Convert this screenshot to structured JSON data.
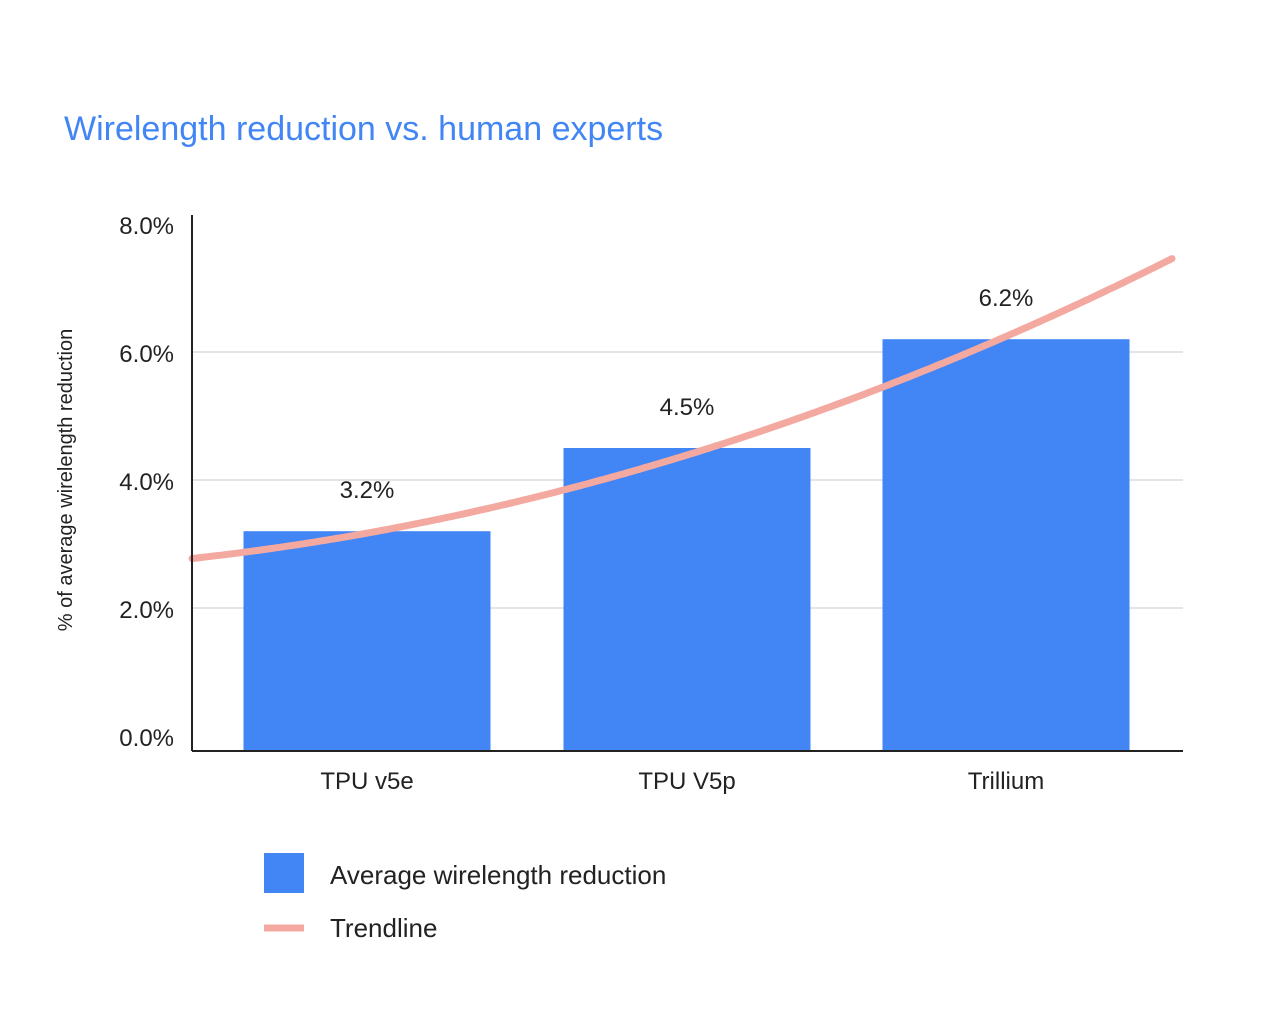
{
  "chart_data": {
    "type": "bar",
    "title": "Wirelength reduction vs. human experts",
    "xlabel": "",
    "ylabel": "% of average wirelength reduction",
    "ylim": [
      0,
      8
    ],
    "yticks": [
      "0.0%",
      "2.0%",
      "4.0%",
      "6.0%",
      "8.0%"
    ],
    "ytick_values": [
      0,
      2,
      4,
      6,
      8
    ],
    "grid": true,
    "categories": [
      "TPU v5e",
      "TPU V5p",
      "Trillium"
    ],
    "series": [
      {
        "name": "Average wirelength reduction",
        "values": [
          3.2,
          4.5,
          6.2
        ],
        "data_labels": [
          "3.2%",
          "4.5%",
          "6.2%"
        ],
        "color": "#4285F4"
      }
    ],
    "trendline": {
      "name": "Trendline",
      "type": "polynomial",
      "values_at_categories": [
        3.17,
        4.39,
        6.25
      ],
      "color": "#F4A9A0"
    },
    "legend": {
      "placement": "bottom-left",
      "entries": [
        "Average wirelength reduction",
        "Trendline"
      ]
    }
  }
}
